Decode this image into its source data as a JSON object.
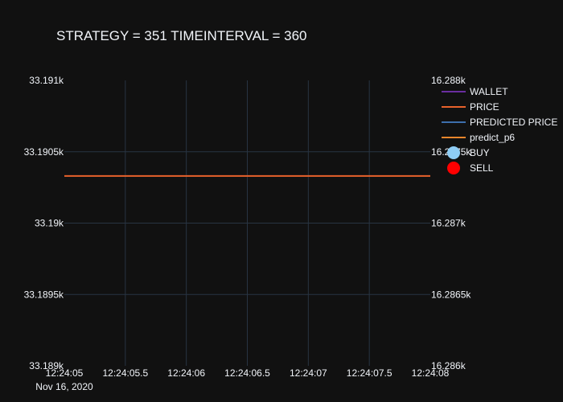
{
  "chart_data": {
    "type": "line",
    "title": "STRATEGY = 351 TIMEINTERVAL = 360",
    "x_ticks": [
      "12:24:05",
      "12:24:05.5",
      "12:24:06",
      "12:24:06.5",
      "12:24:07",
      "12:24:07.5",
      "12:24:08"
    ],
    "x_date_label": "Nov 16, 2020",
    "xlim": [
      "2020-11-16 12:24:05",
      "2020-11-16 12:24:08"
    ],
    "y_left": {
      "range": [
        33189,
        33191
      ],
      "ticks": [
        {
          "value": 33189,
          "label": "33.189k"
        },
        {
          "value": 33189.5,
          "label": "33.1895k"
        },
        {
          "value": 33190,
          "label": "33.19k"
        },
        {
          "value": 33190.5,
          "label": "33.1905k"
        },
        {
          "value": 33191,
          "label": "33.191k"
        }
      ]
    },
    "y_right": {
      "range": [
        16286,
        16288
      ],
      "ticks": [
        {
          "value": 16286,
          "label": "16.286k"
        },
        {
          "value": 16286.5,
          "label": "16.2865k"
        },
        {
          "value": 16287,
          "label": "16.287k"
        },
        {
          "value": 16287.5,
          "label": "16.2875k"
        },
        {
          "value": 16288,
          "label": "16.288k"
        }
      ]
    },
    "series": [
      {
        "name": "WALLET",
        "kind": "line",
        "axis": "left",
        "color": "#6a2ea0",
        "x": [],
        "y": []
      },
      {
        "name": "PRICE",
        "kind": "line",
        "axis": "right",
        "color": "#e8622b",
        "x": [
          "2020-11-16 12:24:05",
          "2020-11-16 12:24:08"
        ],
        "y": [
          16287.33,
          16287.33
        ]
      },
      {
        "name": "PREDICTED PRICE",
        "kind": "line",
        "axis": "right",
        "color": "#3d6fad",
        "x": [],
        "y": []
      },
      {
        "name": "predict_p6",
        "kind": "line",
        "axis": "right",
        "color": "#e8862b",
        "x": [],
        "y": []
      },
      {
        "name": "BUY",
        "kind": "marker",
        "color": "#8ecdf5",
        "x": [],
        "y": []
      },
      {
        "name": "SELL",
        "kind": "marker",
        "color": "#ff0000",
        "x": [],
        "y": []
      }
    ],
    "grid": true,
    "legend_position": "top-right"
  }
}
